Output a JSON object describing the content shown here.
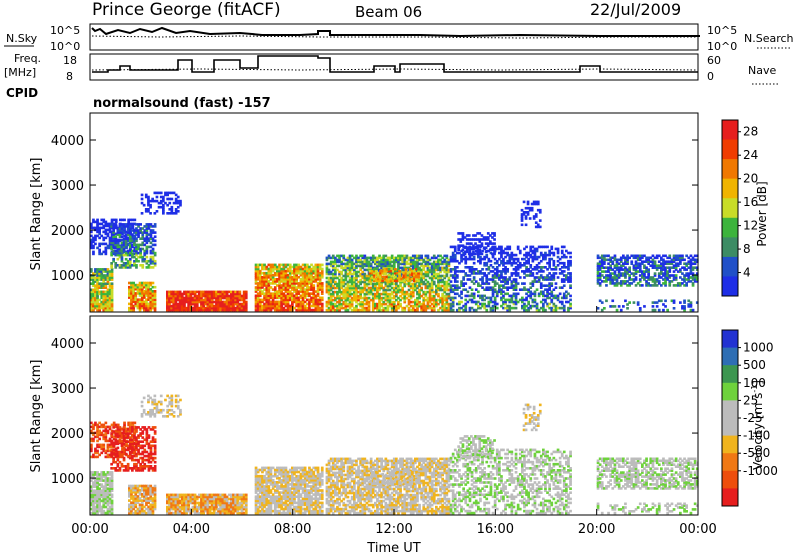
{
  "header": {
    "site": "Prince George (fitACF)",
    "beam": "Beam 06",
    "date": "22/Jul/2009"
  },
  "params": {
    "nsky_label": "N.Sky",
    "nsky_ticks": [
      "10^5",
      "10^0"
    ],
    "nsearch_label": "N.Search",
    "freq_label_1": "Freq.",
    "freq_label_2": "[MHz]",
    "freq_ticks": [
      "18",
      "8"
    ],
    "nave_label": "Nave",
    "nave_ticks": [
      "60",
      "0"
    ],
    "cpid_label": "CPID",
    "mode_text": "normalsound (fast) -157"
  },
  "colors": {
    "power": [
      "#1e2ee6",
      "#2050c8",
      "#3c8c64",
      "#3cb43c",
      "#c8dc28",
      "#f0b400",
      "#f07800",
      "#f03c00",
      "#e61e1e"
    ],
    "velocity": [
      "#2232d2",
      "#2e6eb4",
      "#3c9650",
      "#6ed23c",
      "#bcbcbc",
      "#bcbcbc",
      "#f0b41e",
      "#f07814",
      "#ee4e0c",
      "#e61e1e"
    ]
  },
  "chart_data": [
    {
      "type": "heatmap",
      "panel": "power",
      "ylabel": "Slant Range [km]",
      "ylim": [
        180,
        4600
      ],
      "yticks": [
        "1000",
        "2000",
        "3000",
        "4000"
      ],
      "colorbar_label": "Power [dB]",
      "colorbar_ticks": [
        "4",
        "8",
        "12",
        "16",
        "20",
        "24",
        "28"
      ],
      "clim": [
        0,
        30
      ]
    },
    {
      "type": "heatmap",
      "panel": "velocity",
      "ylabel": "Slant Range [km]",
      "ylim": [
        180,
        4600
      ],
      "yticks": [
        "1000",
        "2000",
        "3000",
        "4000"
      ],
      "colorbar_label_main": "Velocity [m s",
      "colorbar_label_sup": "-1",
      "colorbar_label_end": "]",
      "colorbar_ticks": [
        "1000",
        "500",
        "100",
        "25",
        "-25",
        "-100",
        "-500",
        "-1000"
      ]
    }
  ],
  "x_axis": {
    "xlabel": "Time UT",
    "ticks": [
      "00:00",
      "04:00",
      "08:00",
      "12:00",
      "16:00",
      "20:00",
      "00:00"
    ]
  }
}
